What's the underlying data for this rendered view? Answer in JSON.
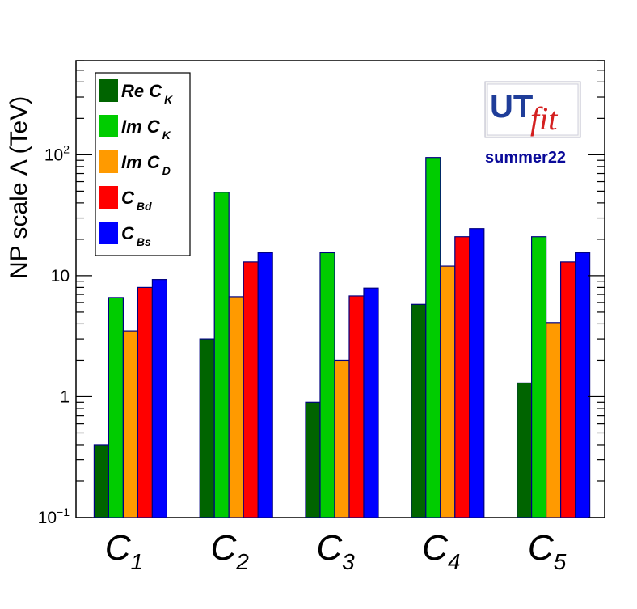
{
  "colors": {
    "re_ck": "#006400",
    "im_ck": "#00cc00",
    "im_cd": "#ff9a00",
    "cbd": "#ff0000",
    "cbs": "#0000ff",
    "bar_edge": "#000080"
  },
  "logo": {
    "ut": "UT",
    "fit": "fit",
    "campaign": "summer22"
  },
  "chart_data": {
    "type": "bar",
    "ylabel": "NP scale Λ (TeV)",
    "yscale": "log",
    "ylim": [
      0.1,
      600
    ],
    "yticks": [
      {
        "value": 0.1,
        "base": "10",
        "exp": "−1"
      },
      {
        "value": 1,
        "base": "1",
        "exp": ""
      },
      {
        "value": 10,
        "base": "10",
        "exp": ""
      },
      {
        "value": 100,
        "base": "10",
        "exp": "2"
      }
    ],
    "categories": [
      {
        "letter": "C",
        "sub": "1"
      },
      {
        "letter": "C",
        "sub": "2"
      },
      {
        "letter": "C",
        "sub": "3"
      },
      {
        "letter": "C",
        "sub": "4"
      },
      {
        "letter": "C",
        "sub": "5"
      }
    ],
    "legend_position": "top-left",
    "series": [
      {
        "name": "Re C",
        "sub": "K",
        "color": "#006400",
        "values": [
          0.4,
          3.0,
          0.9,
          5.8,
          1.3
        ]
      },
      {
        "name": "Im C",
        "sub": "K",
        "color": "#00cc00",
        "values": [
          6.6,
          49,
          15.5,
          95,
          21
        ]
      },
      {
        "name": "Im C",
        "sub": "D",
        "color": "#ff9a00",
        "values": [
          3.5,
          6.7,
          2.0,
          12,
          4.1
        ]
      },
      {
        "name": "C",
        "sub": "Bd",
        "color": "#ff0000",
        "values": [
          8.0,
          13,
          6.8,
          21,
          13
        ]
      },
      {
        "name": "C",
        "sub": "Bs",
        "color": "#0000ff",
        "values": [
          9.3,
          15.5,
          7.9,
          24.5,
          15.5
        ]
      }
    ]
  }
}
